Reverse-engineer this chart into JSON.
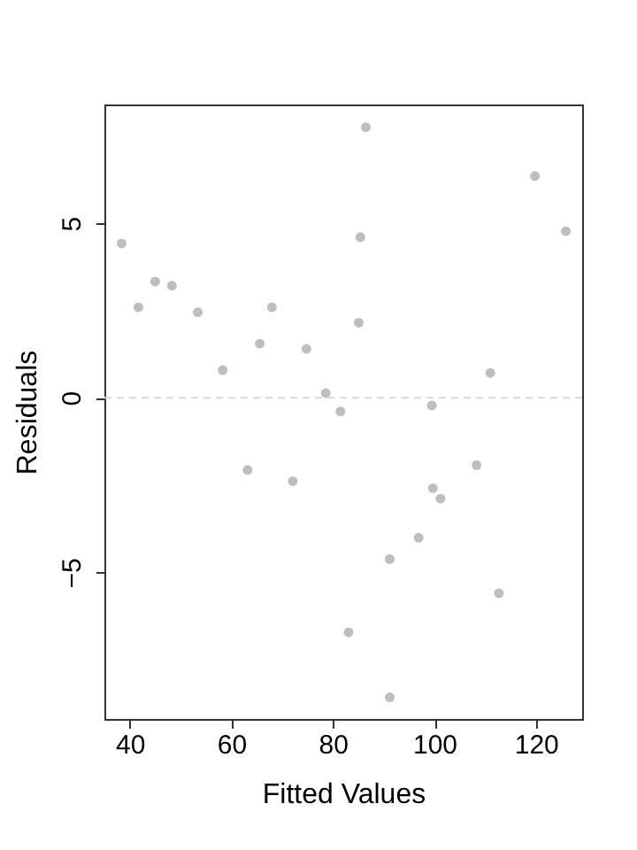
{
  "chart_data": {
    "type": "scatter",
    "xlabel": "Fitted Values",
    "ylabel": "Residuals",
    "x": [
      38.4,
      41.7,
      45.0,
      48.3,
      53.4,
      58.3,
      65.6,
      68.0,
      74.8,
      78.6,
      81.5,
      86.5,
      85.4,
      85.1,
      119.8,
      125.9,
      111.0,
      99.5,
      63.2,
      72.1,
      83.1,
      108.3,
      99.7,
      101.2,
      96.9,
      91.2,
      112.7,
      91.2
    ],
    "series": [
      {
        "color": "#bebebe",
        "values": [
          4.42,
          2.59,
          3.33,
          3.21,
          2.45,
          0.79,
          1.55,
          2.59,
          1.4,
          0.13,
          -0.39,
          7.75,
          4.6,
          2.15,
          6.35,
          4.77,
          0.71,
          -0.22,
          -2.07,
          -2.39,
          -6.72,
          -1.93,
          -2.59,
          -2.89,
          -4.01,
          -4.62,
          -5.6,
          -8.58
        ]
      }
    ],
    "xlim": [
      35.0,
      129.1
    ],
    "ylim": [
      -9.2,
      8.4
    ],
    "xticks": [
      40,
      60,
      80,
      100,
      120
    ],
    "yticks": [
      -5,
      0,
      5
    ],
    "marker": "circle",
    "grid": false,
    "ref_lines": [
      {
        "axis": "y",
        "value": 0,
        "color": "#d9d9d9",
        "line_style": "dashed"
      }
    ]
  }
}
